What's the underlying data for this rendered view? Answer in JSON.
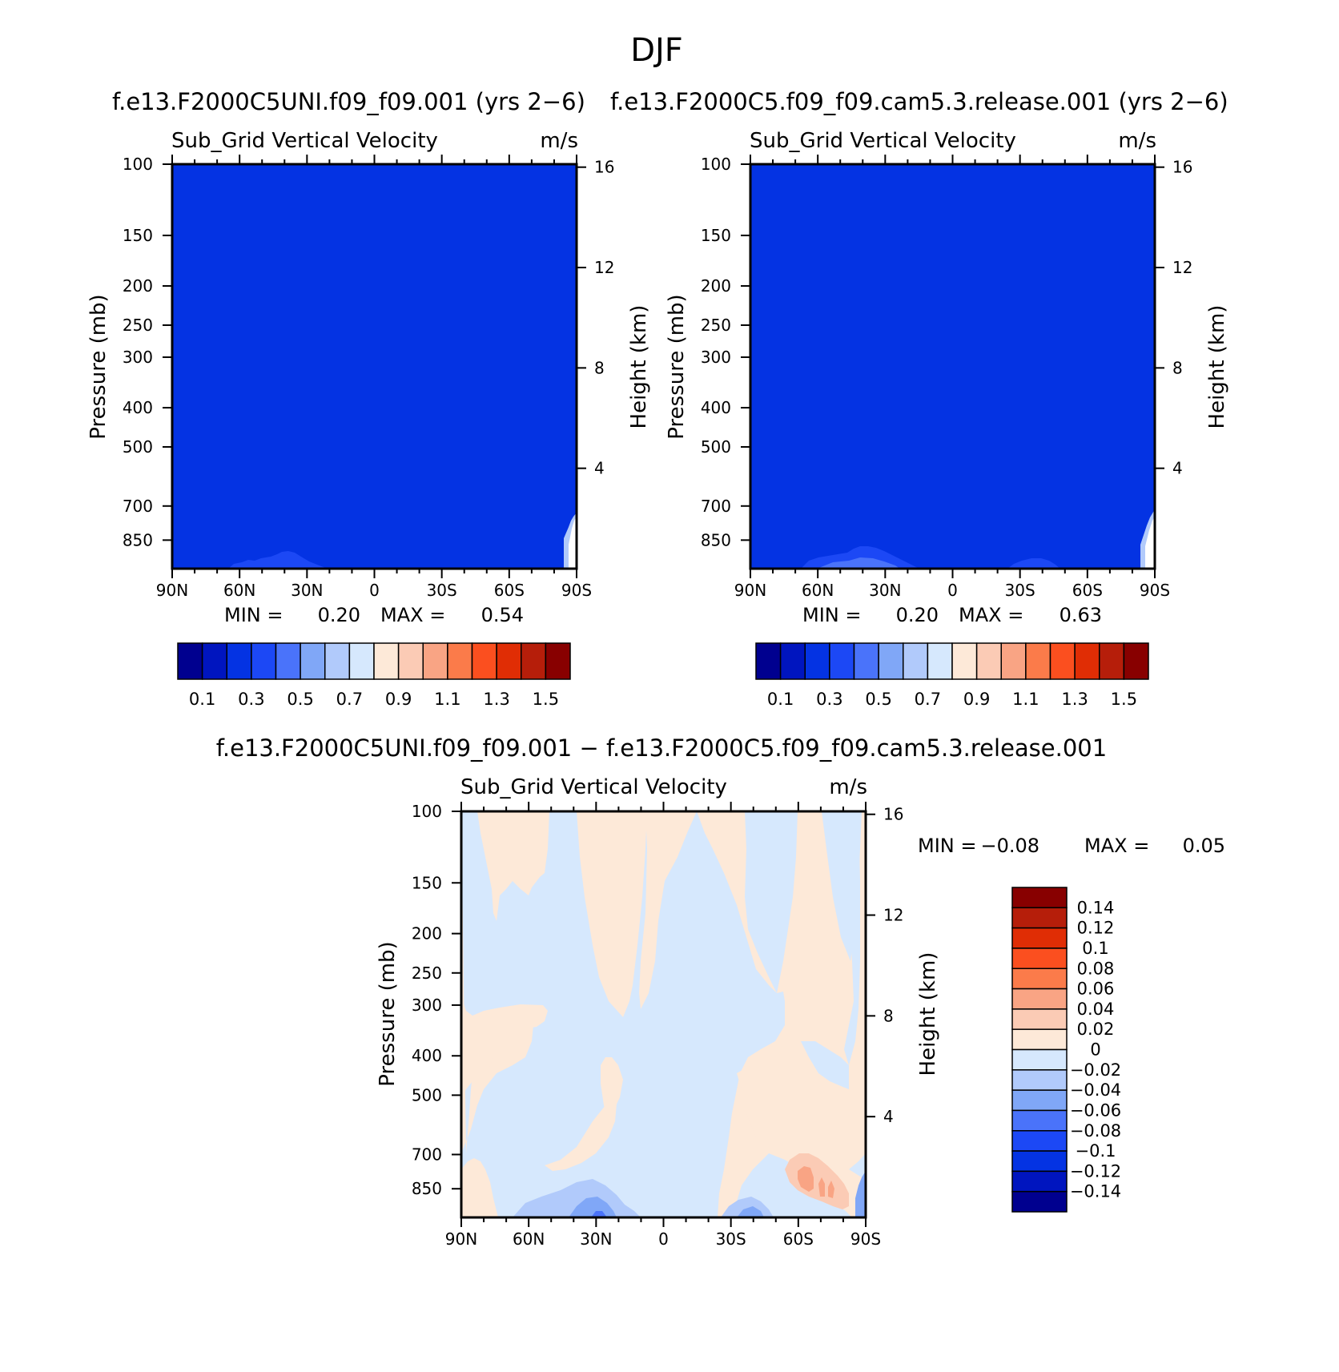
{
  "figure": {
    "title": "DJF",
    "diff_title": "f.e13.F2000C5UNI.f09_f09.001 − f.e13.F2000C5.f09_f09.cam5.3.release.001"
  },
  "chart_data": [
    {
      "type": "heatmap",
      "title": "f.e13.F2000C5UNI.f09_f09.001 (yrs 2−6)",
      "subtitle_left": "Sub_Grid Vertical Velocity",
      "subtitle_right": "m/s",
      "ylabel": "Pressure (mb)",
      "ylabel_right": "Height (km)",
      "x_ticks": [
        "90N",
        "60N",
        "30N",
        "0",
        "30S",
        "60S",
        "90S"
      ],
      "y_ticks": [
        "100",
        "150",
        "200",
        "250",
        "300",
        "400",
        "500",
        "700",
        "850"
      ],
      "y_right_ticks": [
        "16",
        "12",
        "8",
        "4"
      ],
      "ylim": [
        100,
        1000
      ],
      "stats": {
        "min_label": "MIN =",
        "min": "0.20",
        "max_label": "MAX =",
        "max": "0.54"
      },
      "colorbar_labels": [
        "0.1",
        "0.3",
        "0.5",
        "0.7",
        "0.9",
        "1.1",
        "1.3",
        "1.5"
      ]
    },
    {
      "type": "heatmap",
      "title": "f.e13.F2000C5.f09_f09.cam5.3.release.001 (yrs 2−6)",
      "subtitle_left": "Sub_Grid Vertical Velocity",
      "subtitle_right": "m/s",
      "ylabel": "Pressure (mb)",
      "ylabel_right": "Height (km)",
      "x_ticks": [
        "90N",
        "60N",
        "30N",
        "0",
        "30S",
        "60S",
        "90S"
      ],
      "y_ticks": [
        "100",
        "150",
        "200",
        "250",
        "300",
        "400",
        "500",
        "700",
        "850"
      ],
      "y_right_ticks": [
        "16",
        "12",
        "8",
        "4"
      ],
      "ylim": [
        100,
        1000
      ],
      "stats": {
        "min_label": "MIN =",
        "min": "0.20",
        "max_label": "MAX =",
        "max": "0.63"
      },
      "colorbar_labels": [
        "0.1",
        "0.3",
        "0.5",
        "0.7",
        "0.9",
        "1.1",
        "1.3",
        "1.5"
      ]
    },
    {
      "type": "heatmap",
      "title": "",
      "subtitle_left": "Sub_Grid Vertical Velocity",
      "subtitle_right": "m/s",
      "ylabel": "Pressure (mb)",
      "ylabel_right": "Height (km)",
      "x_ticks": [
        "90N",
        "60N",
        "30N",
        "0",
        "30S",
        "60S",
        "90S"
      ],
      "y_ticks": [
        "100",
        "150",
        "200",
        "250",
        "300",
        "400",
        "500",
        "700",
        "850"
      ],
      "y_right_ticks": [
        "16",
        "12",
        "8",
        "4"
      ],
      "ylim": [
        100,
        1000
      ],
      "stats": {
        "min_label": "MIN =",
        "min": "−0.08",
        "max_label": "MAX =",
        "max": "0.05"
      },
      "colorbar_labels": [
        "0.14",
        "0.12",
        "0.1",
        "0.08",
        "0.06",
        "0.04",
        "0.02",
        "0",
        "−0.02",
        "−0.04",
        "−0.06",
        "−0.08",
        "−0.1",
        "−0.12",
        "−0.14"
      ]
    }
  ],
  "colors": {
    "top_fill": "#0433e3",
    "top_low": "#1c48f5",
    "diff_neutral_pos": "#fde9d8",
    "diff_neutral_neg": "#d6e8fd",
    "diff_neg": "#80a7f7",
    "diff_pos": "#f9b99a",
    "scale": [
      "#00008f",
      "#0015bf",
      "#0433e3",
      "#1c48f5",
      "#4a73fa",
      "#80a7f7",
      "#b1cafb",
      "#d6e8fd",
      "#fde9d8",
      "#fbcbb5",
      "#f9a484",
      "#fb7b4a",
      "#fb4f1f",
      "#e02d05",
      "#b61e0a",
      "#880000"
    ]
  }
}
